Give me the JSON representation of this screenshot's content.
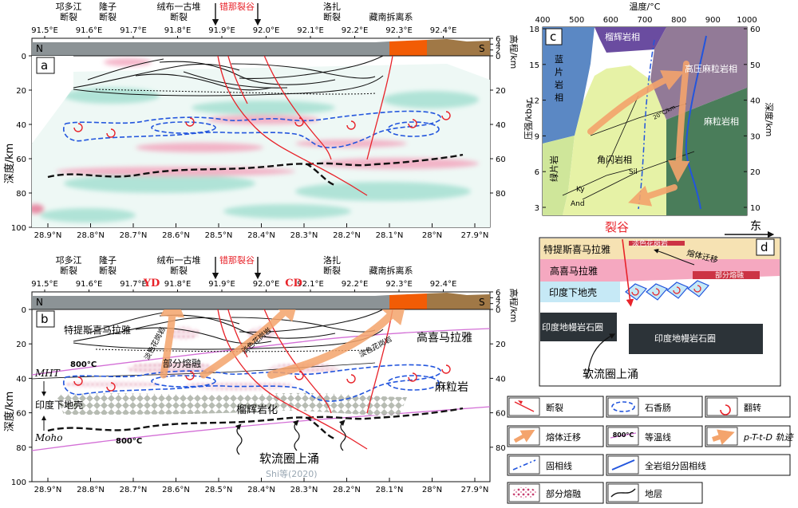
{
  "profile_a": {
    "panel_label": "a",
    "side_left": "N",
    "side_right": "S",
    "faults": [
      {
        "name_line1": "邛多江",
        "name_line2": "断裂"
      },
      {
        "name_line1": "隆子",
        "name_line2": "断裂"
      },
      {
        "name_line1": "绒布一古堆",
        "name_line2": "断裂"
      },
      {
        "name_line1": "错那裂谷",
        "name_line2": ""
      },
      {
        "name_line1": "洛扎",
        "name_line2": "断裂"
      },
      {
        "name_line1": "藏南拆离系",
        "name_line2": ""
      }
    ],
    "lon_ticks": [
      "91.5°E",
      "91.6°E",
      "91.7°E",
      "91.8°E",
      "91.9°E",
      "92.0°E",
      "92.1°E",
      "92.2°E",
      "92.3°E",
      "92.4°E"
    ],
    "lat_ticks": [
      "28.9°N",
      "28.8°N",
      "28.7°N",
      "28.6°N",
      "28.5°N",
      "28.4°N",
      "28.3°N",
      "28.2°N",
      "28.1°N",
      "28°N",
      "27.9°N"
    ],
    "depth_ticks": [
      "0",
      "20",
      "40",
      "60",
      "80",
      "100"
    ],
    "elev_ticks": [
      "6",
      "4",
      "2",
      "0"
    ],
    "right_depth_ticks": [
      "0",
      "20",
      "40",
      "60",
      "80"
    ],
    "y_label": "深度/km",
    "elev_label": "高程/km"
  },
  "profile_b": {
    "panel_label": "b",
    "side_left": "N",
    "side_right": "S",
    "yd": "YD",
    "cd": "CD",
    "labels": {
      "tethyan": "特提斯喜马拉雅",
      "high_himalaya": "高喜马拉雅",
      "granulite": "麻粒岩",
      "indian_crust": "印度下地壳",
      "partial_melt": "部分熔融",
      "eclogitization": "榴辉岩化",
      "asthenosphere": "软流圈上涌",
      "credit": "Shi等(2020)",
      "leuco1": "淡色花岗岩",
      "leuco2": "淡色花岗岩",
      "leuco3": "淡色花岗岩",
      "iso_a": "800°C",
      "iso_b": "800°C",
      "mht": "MHT",
      "moho": "Moho"
    }
  },
  "panel_c": {
    "panel_label": "c",
    "top_title": "温度/°C",
    "temp_ticks": [
      "400",
      "500",
      "600",
      "700",
      "800",
      "900",
      "1000"
    ],
    "p_ticks": [
      "18",
      "15",
      "12",
      "9",
      "6",
      "3"
    ],
    "depth_ticks": [
      "60",
      "50",
      "40",
      "30",
      "20",
      "10"
    ],
    "y_left": "压强/kbar",
    "y_right": "深度/km",
    "facies": {
      "eclogite": "榴辉岩相",
      "blueschist": [
        "蓝",
        "片",
        "岩",
        "相"
      ],
      "greenschist": "绿片岩",
      "amphibolite": "角闪岩相",
      "hp_granulite": "高压麻粒岩相",
      "granulite": "麻粒岩相",
      "ky": "Ky",
      "sil": "Sil",
      "and": "And",
      "gradient": "20°C/km"
    }
  },
  "panel_d": {
    "panel_label": "d",
    "rift": "裂谷",
    "east": "东",
    "tethyan": "特提斯喜马拉雅",
    "high_himalaya": "高喜马拉雅",
    "indian_crust": "印度下地壳",
    "leuco": "淡色花岗岩",
    "migration": "熔体迁移",
    "partial_melt": "部分熔融",
    "mantle_left": "印度地幔岩石圈",
    "mantle_right": "印度地幔岩石圈",
    "upwelling": "软流圈上涌"
  },
  "legend": {
    "items": [
      {
        "icon": "fault-icon",
        "label": "断裂"
      },
      {
        "icon": "boudinage-icon",
        "label": "石香肠"
      },
      {
        "icon": "overturn-icon",
        "label": "翻转"
      },
      {
        "icon": "melt-migration-icon",
        "label": "熔体迁移"
      },
      {
        "icon": "isotherm-icon",
        "label": "等温线",
        "sample": "800°C"
      },
      {
        "icon": "ptt-path-icon",
        "label": "p-T-t-D 轨迹"
      },
      {
        "icon": "solidus-dashdot-icon",
        "label": "固相线"
      },
      {
        "icon": "solidus-blue-icon",
        "label": "全岩组分固相线"
      },
      {
        "icon": "partial-melt-icon",
        "label": "部分熔融"
      },
      {
        "icon": "strata-icon",
        "label": "地层"
      }
    ]
  },
  "colors": {
    "fault": "#e8232a",
    "boudin": "#2255dd",
    "isotherm": "#d36fd6",
    "arrow": "#f4a46c",
    "topo_grey": "#8c9396",
    "topo_brown": "#a07846",
    "topo_orange": "#f25c05",
    "blueschist": "#5b88c4",
    "greenschist": "#cfe69a",
    "amphibolite": "#e6f2a6",
    "granulite": "#4a7d5a",
    "hp_granulite": "#927a97",
    "eclogite": "#6a4ca0",
    "d_tethyan": "#f6e2b3",
    "d_hh": "#f5a8c0",
    "d_crust": "#c6e9f6",
    "d_mantle": "#2c3338"
  }
}
